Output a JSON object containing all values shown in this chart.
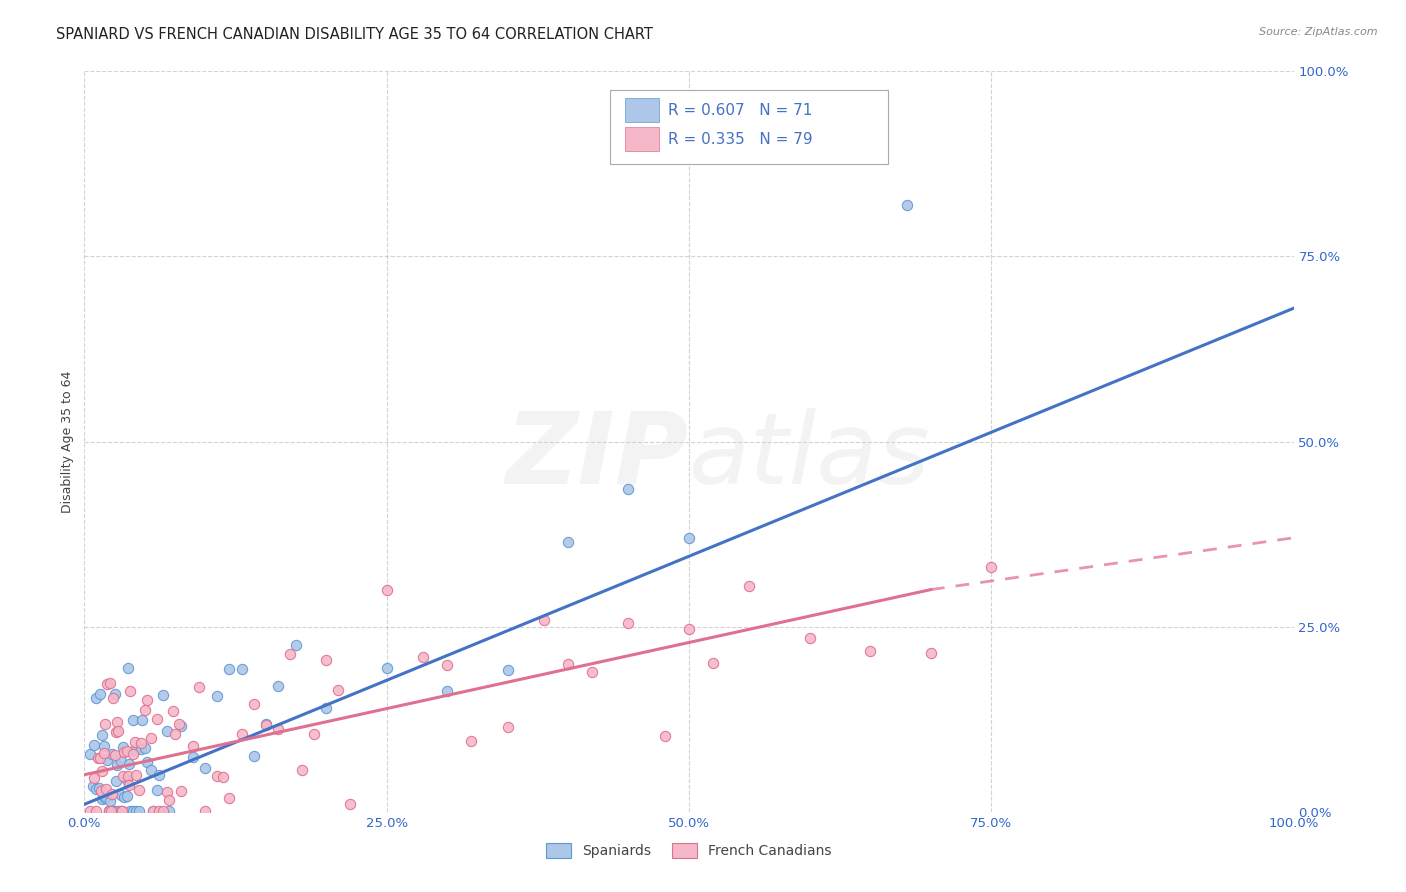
{
  "title": "SPANIARD VS FRENCH CANADIAN DISABILITY AGE 35 TO 64 CORRELATION CHART",
  "source": "Source: ZipAtlas.com",
  "ylabel": "Disability Age 35 to 64",
  "x_tick_labels": [
    "0.0%",
    "25.0%",
    "50.0%",
    "75.0%",
    "100.0%"
  ],
  "x_tick_values": [
    0.0,
    0.25,
    0.5,
    0.75,
    1.0
  ],
  "y_tick_labels": [
    "0.0%",
    "25.0%",
    "50.0%",
    "75.0%",
    "100.0%"
  ],
  "y_tick_values": [
    0.0,
    0.25,
    0.5,
    0.75,
    1.0
  ],
  "right_y_tick_labels": [
    "100.0%",
    "75.0%",
    "50.0%",
    "25.0%",
    "0.0%"
  ],
  "spaniard_color": "#aec6e8",
  "spaniard_edge_color": "#5b9bd5",
  "french_color": "#f4b8c8",
  "french_edge_color": "#e07090",
  "spaniard_line_color": "#4472c4",
  "french_line_color": "#e07090",
  "spaniard_R": 0.607,
  "spaniard_N": 71,
  "french_R": 0.335,
  "french_N": 79,
  "legend_color": "#4472c4",
  "background_color": "#ffffff",
  "grid_color": "#c8c8c8",
  "title_fontsize": 10.5,
  "axis_fontsize": 9,
  "tick_fontsize": 9.5,
  "watermark": "ZIPatlas",
  "sp_line_x0": 0.0,
  "sp_line_y0": 0.01,
  "sp_line_x1": 1.0,
  "sp_line_y1": 0.68,
  "fr_line_x0": 0.0,
  "fr_line_y0": 0.05,
  "fr_line_x1_solid": 0.7,
  "fr_line_y1_solid": 0.3,
  "fr_line_x1_dash": 1.0,
  "fr_line_y1_dash": 0.37
}
